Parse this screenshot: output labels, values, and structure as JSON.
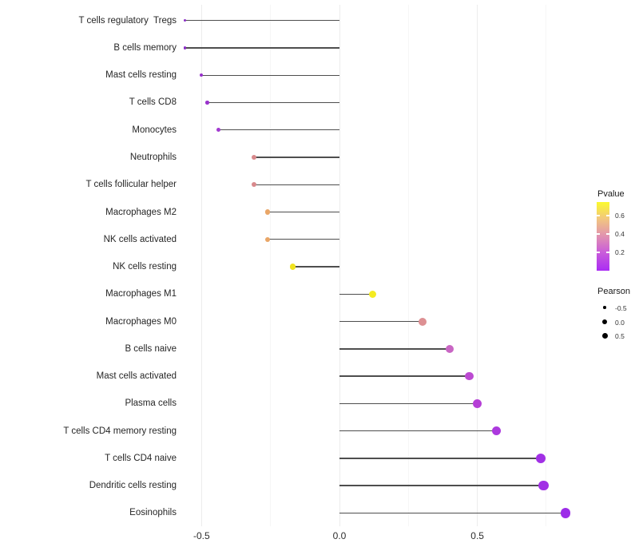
{
  "chart": {
    "x_axis": {
      "ticks": [
        "-0.5",
        "0.0",
        "0.5"
      ],
      "tick_values": [
        -0.5,
        0.0,
        0.5
      ]
    },
    "legend_pvalue": {
      "title": "Pvalue",
      "ticks": [
        "0.6",
        "0.4",
        "0.2"
      ],
      "gradient_top_color": "#fbfa2d",
      "gradient_bottom_color": "#aa2cf4"
    },
    "legend_pearson": {
      "title": "Pearson",
      "entries": [
        "-0.5",
        "0.0",
        "0.5"
      ]
    }
  },
  "chart_data": {
    "type": "scatter",
    "subtype": "lollipop",
    "title": "",
    "xlabel": "",
    "ylabel": "",
    "xlim": [
      -0.63,
      0.9
    ],
    "grid": "vertical-only",
    "legend_position": "right",
    "categories": [
      "T cells regulatory  Tregs",
      "B cells memory",
      "Mast cells resting",
      "T cells CD8",
      "Monocytes",
      "Neutrophils",
      "T cells follicular helper",
      "Macrophages M2",
      "NK cells activated",
      "NK cells resting",
      "Macrophages M1",
      "Macrophages M0",
      "B cells naive",
      "Mast cells activated",
      "Plasma cells",
      "T cells CD4 memory resting",
      "T cells CD4 naive",
      "Dendritic cells resting",
      "Eosinophils"
    ],
    "series": [
      {
        "name": "Pearson",
        "values": [
          -0.56,
          -0.56,
          -0.5,
          -0.48,
          -0.44,
          -0.31,
          -0.31,
          -0.26,
          -0.26,
          -0.17,
          0.12,
          0.3,
          0.4,
          0.47,
          0.5,
          0.57,
          0.73,
          0.74,
          0.82
        ]
      }
    ],
    "point_colors": [
      "#8b2ec5",
      "#8b2ec5",
      "#9831cb",
      "#9a33cc",
      "#a23ad0",
      "#d8898c",
      "#d8898c",
      "#e9a667",
      "#e9a667",
      "#f0e320",
      "#f4eb21",
      "#dd9093",
      "#c966c4",
      "#bc4ad2",
      "#b53fd6",
      "#ac39de",
      "#a130e5",
      "#a130e5",
      "#9c2ce8"
    ],
    "size_encoding": "Pearson",
    "color_encoding": "Pvalue"
  }
}
